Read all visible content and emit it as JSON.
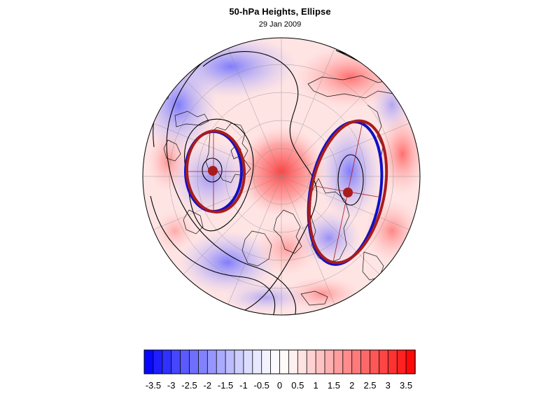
{
  "figure": {
    "title": "50-hPa Heights, Ellipse",
    "subtitle": "29 Jan 2009"
  },
  "colors": {
    "ellipse_blue": "#1010c8",
    "ellipse_red": "#a81c1c",
    "contour": "#000000",
    "anomaly_negative": "#4040ff",
    "anomaly_positive": "#ff2020"
  },
  "colorbar": {
    "levels": [
      -3.75,
      -3.5,
      -3.25,
      -3,
      -2.75,
      -2.5,
      -2.25,
      -2,
      -1.75,
      -1.5,
      -1.25,
      -1,
      -0.75,
      -0.5,
      -0.25,
      0,
      0.25,
      0.5,
      0.75,
      1,
      1.25,
      1.5,
      1.75,
      2,
      2.25,
      2.5,
      2.75,
      3,
      3.25,
      3.5,
      3.75
    ],
    "ticks": [
      "-3.5",
      "-3",
      "-2.5",
      "-2",
      "-1.5",
      "-1",
      "-0.5",
      "0",
      "0.5",
      "1",
      "1.5",
      "2",
      "2.5",
      "3",
      "3.5"
    ],
    "colors": [
      "#0808ff",
      "#1e1eff",
      "#3030ff",
      "#4646ff",
      "#5a5aff",
      "#6e6eff",
      "#8282ff",
      "#9696ff",
      "#aaaaff",
      "#bcbcff",
      "#cdcdff",
      "#dcdcff",
      "#e8e8ff",
      "#f2f2ff",
      "#fafaff",
      "#fffafa",
      "#fff0f0",
      "#ffe2e2",
      "#ffd2d2",
      "#ffc2c2",
      "#ffb0b0",
      "#ff9e9e",
      "#ff8c8c",
      "#ff7a7a",
      "#ff6868",
      "#ff5656",
      "#ff4444",
      "#ff3232",
      "#ff2020",
      "#ff0a0a"
    ]
  }
}
